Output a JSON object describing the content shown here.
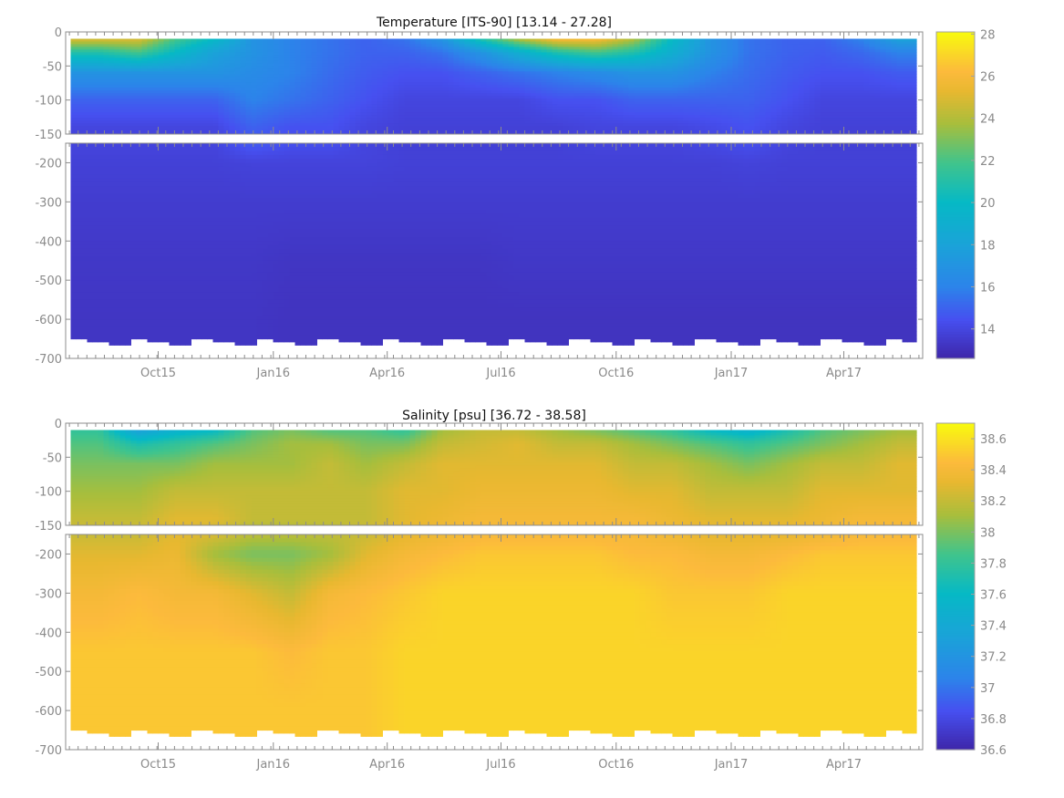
{
  "chart_data": [
    {
      "type": "heatmap",
      "title": "Temperature [ITS-90]   [13.14 - 27.28]",
      "xlim": [
        "2015-07-19",
        "2017-06-03"
      ],
      "ylim": [
        -700,
        0
      ],
      "y_break": -150,
      "xtick_labels": [
        {
          "date": "2015-10-01",
          "label": "Oct15"
        },
        {
          "date": "2016-01-01",
          "label": "Jan16"
        },
        {
          "date": "2016-04-01",
          "label": "Apr16"
        },
        {
          "date": "2016-07-01",
          "label": "Jul16"
        },
        {
          "date": "2016-10-01",
          "label": "Oct16"
        },
        {
          "date": "2017-01-01",
          "label": "Jan17"
        },
        {
          "date": "2017-04-01",
          "label": "Apr17"
        }
      ],
      "ytick_upper": [
        0,
        -50,
        -100,
        -150
      ],
      "ytick_lower": [
        -200,
        -300,
        -400,
        -500,
        -600,
        -700
      ],
      "colormap": "parula",
      "clim": [
        12.6,
        28.1
      ],
      "colorbar_ticks": [
        14,
        16,
        18,
        20,
        22,
        24,
        26,
        28
      ],
      "depths": [
        10,
        30,
        60,
        100,
        140,
        200,
        300,
        450,
        600
      ],
      "times": [
        "2015-08-15",
        "2015-09-15",
        "2015-10-15",
        "2015-11-15",
        "2015-12-15",
        "2016-01-15",
        "2016-02-15",
        "2016-03-15",
        "2016-04-15",
        "2016-05-15",
        "2016-06-15",
        "2016-07-15",
        "2016-08-15",
        "2016-09-15",
        "2016-10-15",
        "2016-11-15",
        "2016-12-15",
        "2017-01-15",
        "2017-02-15",
        "2017-03-15",
        "2017-04-15",
        "2017-05-15"
      ],
      "values": [
        [
          25,
          21,
          17,
          15,
          14,
          13.8,
          13.6,
          13.4,
          13.3
        ],
        [
          25,
          22,
          17,
          15,
          14,
          13.8,
          13.6,
          13.4,
          13.3
        ],
        [
          22,
          20,
          17,
          15,
          14,
          13.8,
          13.6,
          13.4,
          13.3
        ],
        [
          20,
          18,
          17,
          15,
          14,
          13.8,
          13.6,
          13.4,
          13.3
        ],
        [
          17,
          17,
          16.5,
          16,
          15,
          13.9,
          13.6,
          13.4,
          13.3
        ],
        [
          16,
          16,
          16,
          15.5,
          14.5,
          13.9,
          13.6,
          13.3,
          13.2
        ],
        [
          15.5,
          15.5,
          15.3,
          15,
          14.5,
          13.9,
          13.6,
          13.3,
          13.2
        ],
        [
          15,
          15,
          14.8,
          14.5,
          14,
          13.9,
          13.6,
          13.3,
          13.2
        ],
        [
          15.5,
          15,
          14.5,
          14,
          13.8,
          13.8,
          13.6,
          13.3,
          13.2
        ],
        [
          17,
          15.5,
          14.5,
          14,
          13.8,
          13.8,
          13.6,
          13.3,
          13.2
        ],
        [
          21,
          17,
          15,
          14,
          13.8,
          13.8,
          13.6,
          13.3,
          13.2
        ],
        [
          24,
          19,
          15.5,
          14,
          13.8,
          13.8,
          13.6,
          13.4,
          13.2
        ],
        [
          26,
          21,
          16,
          14.5,
          13.8,
          13.8,
          13.6,
          13.4,
          13.2
        ],
        [
          26,
          22,
          16.5,
          14.5,
          14,
          13.8,
          13.6,
          13.4,
          13.2
        ],
        [
          24,
          21,
          17,
          15,
          14,
          13.8,
          13.6,
          13.4,
          13.2
        ],
        [
          20,
          19,
          17,
          15,
          14,
          13.8,
          13.6,
          13.4,
          13.2
        ],
        [
          17,
          17,
          16,
          15,
          14.2,
          13.8,
          13.6,
          13.4,
          13.2
        ],
        [
          15.5,
          15.5,
          15.3,
          15,
          14.5,
          13.9,
          13.6,
          13.4,
          13.2
        ],
        [
          15,
          15,
          14.8,
          14.5,
          14,
          13.8,
          13.6,
          13.4,
          13.2
        ],
        [
          15,
          14.8,
          14.5,
          14,
          13.8,
          13.8,
          13.6,
          13.4,
          13.2
        ],
        [
          16,
          15.2,
          14.5,
          14,
          13.8,
          13.8,
          13.6,
          13.4,
          13.2
        ],
        [
          18,
          16,
          14.8,
          14,
          13.8,
          13.8,
          13.6,
          13.4,
          13.2
        ]
      ]
    },
    {
      "type": "heatmap",
      "title": "Salinity [psu]   [36.72 - 38.58]",
      "xlim": [
        "2015-07-19",
        "2017-06-03"
      ],
      "ylim": [
        -700,
        0
      ],
      "y_break": -150,
      "xtick_labels": [
        {
          "date": "2015-10-01",
          "label": "Oct15"
        },
        {
          "date": "2016-01-01",
          "label": "Jan16"
        },
        {
          "date": "2016-04-01",
          "label": "Apr16"
        },
        {
          "date": "2016-07-01",
          "label": "Jul16"
        },
        {
          "date": "2016-10-01",
          "label": "Oct16"
        },
        {
          "date": "2017-01-01",
          "label": "Jan17"
        },
        {
          "date": "2017-04-01",
          "label": "Apr17"
        }
      ],
      "ytick_upper": [
        0,
        -50,
        -100,
        -150
      ],
      "ytick_lower": [
        -200,
        -300,
        -400,
        -500,
        -600,
        -700
      ],
      "colormap": "parula",
      "clim": [
        36.6,
        38.7
      ],
      "colorbar_ticks": [
        36.6,
        36.8,
        37,
        37.2,
        37.4,
        37.6,
        37.8,
        38,
        38.2,
        38.4,
        38.6
      ],
      "depths": [
        10,
        30,
        60,
        100,
        140,
        200,
        300,
        450,
        600
      ],
      "times": [
        "2015-08-15",
        "2015-09-15",
        "2015-10-15",
        "2015-11-15",
        "2015-12-15",
        "2016-01-15",
        "2016-02-15",
        "2016-03-15",
        "2016-04-15",
        "2016-05-15",
        "2016-06-15",
        "2016-07-15",
        "2016-08-15",
        "2016-09-15",
        "2016-10-15",
        "2016-11-15",
        "2016-12-15",
        "2017-01-15",
        "2017-02-15",
        "2017-03-15",
        "2017-04-15",
        "2017-05-15"
      ],
      "values": [
        [
          37.8,
          37.9,
          38.0,
          38.1,
          38.2,
          38.3,
          38.4,
          38.5,
          38.5
        ],
        [
          37.3,
          37.7,
          38.0,
          38.1,
          38.2,
          38.3,
          38.45,
          38.5,
          38.5
        ],
        [
          37.5,
          37.8,
          38.0,
          38.2,
          38.3,
          38.35,
          38.4,
          38.5,
          38.5
        ],
        [
          37.6,
          37.9,
          38.1,
          38.2,
          38.3,
          38.1,
          38.4,
          38.5,
          38.5
        ],
        [
          37.9,
          38.0,
          38.1,
          38.2,
          38.2,
          38.0,
          38.3,
          38.5,
          38.5
        ],
        [
          38.0,
          38.1,
          38.1,
          38.2,
          38.2,
          38.0,
          38.2,
          38.45,
          38.5
        ],
        [
          37.9,
          38.1,
          38.2,
          38.2,
          38.2,
          38.1,
          38.4,
          38.5,
          38.5
        ],
        [
          37.9,
          38.0,
          38.1,
          38.2,
          38.2,
          38.3,
          38.45,
          38.5,
          38.5
        ],
        [
          37.8,
          38.0,
          38.2,
          38.3,
          38.3,
          38.4,
          38.5,
          38.55,
          38.55
        ],
        [
          38.1,
          38.2,
          38.3,
          38.3,
          38.35,
          38.45,
          38.55,
          38.55,
          38.55
        ],
        [
          38.2,
          38.25,
          38.3,
          38.35,
          38.4,
          38.5,
          38.55,
          38.55,
          38.55
        ],
        [
          38.2,
          38.3,
          38.3,
          38.35,
          38.4,
          38.5,
          38.55,
          38.55,
          38.55
        ],
        [
          38.1,
          38.2,
          38.3,
          38.35,
          38.4,
          38.5,
          38.55,
          38.55,
          38.55
        ],
        [
          38.0,
          38.2,
          38.3,
          38.35,
          38.4,
          38.5,
          38.55,
          38.55,
          38.55
        ],
        [
          37.9,
          38.1,
          38.2,
          38.3,
          38.4,
          38.45,
          38.55,
          38.55,
          38.55
        ],
        [
          37.8,
          38.0,
          38.2,
          38.3,
          38.35,
          38.45,
          38.5,
          38.55,
          38.55
        ],
        [
          37.6,
          37.9,
          38.1,
          38.2,
          38.3,
          38.4,
          38.5,
          38.55,
          38.55
        ],
        [
          37.5,
          37.8,
          38.0,
          38.2,
          38.3,
          38.4,
          38.5,
          38.55,
          38.55
        ],
        [
          37.7,
          37.9,
          38.1,
          38.2,
          38.3,
          38.45,
          38.55,
          38.55,
          38.55
        ],
        [
          37.9,
          38.0,
          38.2,
          38.3,
          38.35,
          38.5,
          38.55,
          38.55,
          38.55
        ],
        [
          38.0,
          38.1,
          38.2,
          38.3,
          38.4,
          38.5,
          38.55,
          38.55,
          38.55
        ],
        [
          38.1,
          38.2,
          38.3,
          38.3,
          38.4,
          38.5,
          38.55,
          38.55,
          38.55
        ]
      ]
    }
  ]
}
